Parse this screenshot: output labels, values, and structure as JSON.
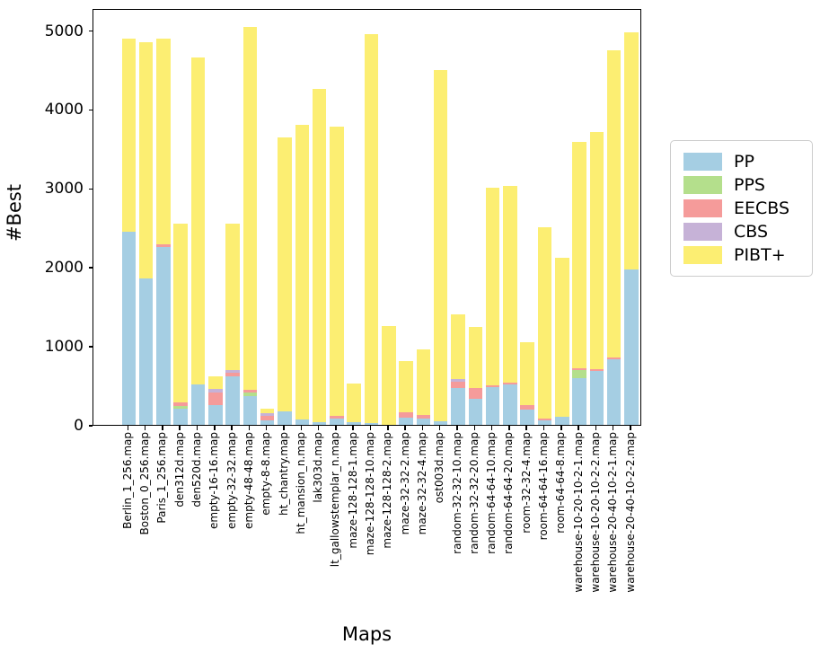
{
  "figure": {
    "ylabel": "#Best",
    "xlabel": "Maps"
  },
  "chart_data": {
    "type": "bar",
    "stacked": true,
    "title": "",
    "xlabel": "Maps",
    "ylabel": "#Best",
    "ylim": [
      0,
      5280
    ],
    "yticks": [
      0,
      1000,
      2000,
      3000,
      4000,
      5000
    ],
    "grid": false,
    "legend_position": "right-outside",
    "categories": [
      "Berlin_1_256.map",
      "Boston_0_256.map",
      "Paris_1_256.map",
      "den312d.map",
      "den520d.map",
      "empty-16-16.map",
      "empty-32-32.map",
      "empty-48-48.map",
      "empty-8-8.map",
      "ht_chantry.map",
      "ht_mansion_n.map",
      "lak303d.map",
      "lt_gallowstemplar_n.map",
      "maze-128-128-1.map",
      "maze-128-128-10.map",
      "maze-128-128-2.map",
      "maze-32-32-2.map",
      "maze-32-32-4.map",
      "ost003d.map",
      "random-32-32-10.map",
      "random-32-32-20.map",
      "random-64-64-10.map",
      "random-64-64-20.map",
      "room-32-32-4.map",
      "room-64-64-16.map",
      "room-64-64-8.map",
      "warehouse-10-20-10-2-1.map",
      "warehouse-10-20-10-2-2.map",
      "warehouse-20-40-10-2-1.map",
      "warehouse-20-40-10-2-2.map"
    ],
    "series": [
      {
        "name": "PP",
        "color": "#a5cee3",
        "values": [
          2450,
          1860,
          2250,
          200,
          515,
          250,
          615,
          370,
          55,
          170,
          70,
          30,
          85,
          30,
          20,
          0,
          95,
          85,
          50,
          465,
          325,
          480,
          515,
          190,
          60,
          105,
          590,
          685,
          835,
          1970
        ]
      },
      {
        "name": "PPS",
        "color": "#b4df8c",
        "values": [
          0,
          0,
          0,
          40,
          0,
          0,
          0,
          45,
          0,
          0,
          0,
          0,
          0,
          0,
          0,
          0,
          0,
          0,
          0,
          0,
          0,
          0,
          0,
          0,
          0,
          0,
          105,
          0,
          0,
          0
        ]
      },
      {
        "name": "EECBS",
        "color": "#f59b9a",
        "values": [
          0,
          0,
          35,
          45,
          0,
          165,
          50,
          25,
          55,
          0,
          0,
          0,
          25,
          0,
          0,
          0,
          65,
          40,
          0,
          80,
          140,
          25,
          25,
          55,
          25,
          0,
          25,
          25,
          20,
          0
        ]
      },
      {
        "name": "CBS",
        "color": "#c6b2d7",
        "values": [
          0,
          0,
          0,
          0,
          0,
          45,
          30,
          0,
          40,
          0,
          0,
          0,
          0,
          0,
          0,
          0,
          0,
          0,
          0,
          40,
          0,
          0,
          0,
          0,
          0,
          0,
          0,
          0,
          0,
          0
        ]
      },
      {
        "name": "PIBT+",
        "color": "#fcee72",
        "values": [
          2440,
          2985,
          2610,
          2260,
          4135,
          160,
          1860,
          4605,
          55,
          3470,
          3735,
          4230,
          3670,
          490,
          4925,
          1250,
          650,
          830,
          4440,
          810,
          775,
          2500,
          2490,
          805,
          2415,
          2010,
          2860,
          2995,
          3885,
          3000
        ]
      }
    ]
  }
}
